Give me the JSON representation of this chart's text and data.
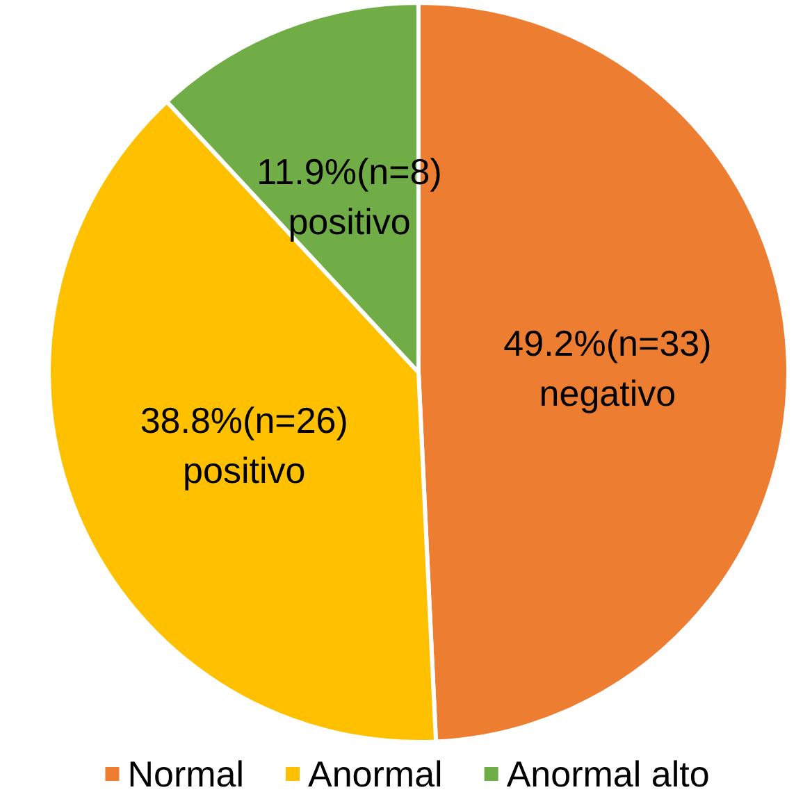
{
  "chart_data": {
    "type": "pie",
    "categories": [
      "Normal",
      "Anormal",
      "Anormal alto"
    ],
    "values": [
      49.2,
      38.8,
      11.9
    ],
    "colors": [
      "#ed7d31",
      "#ffc000",
      "#70ad47"
    ],
    "value_labels": [
      "49.2%(n=33)\nnegativo",
      "38.8%(n=26)\npositivo",
      "11.9%(n=8)\npositivo"
    ],
    "legend": "bottom"
  }
}
